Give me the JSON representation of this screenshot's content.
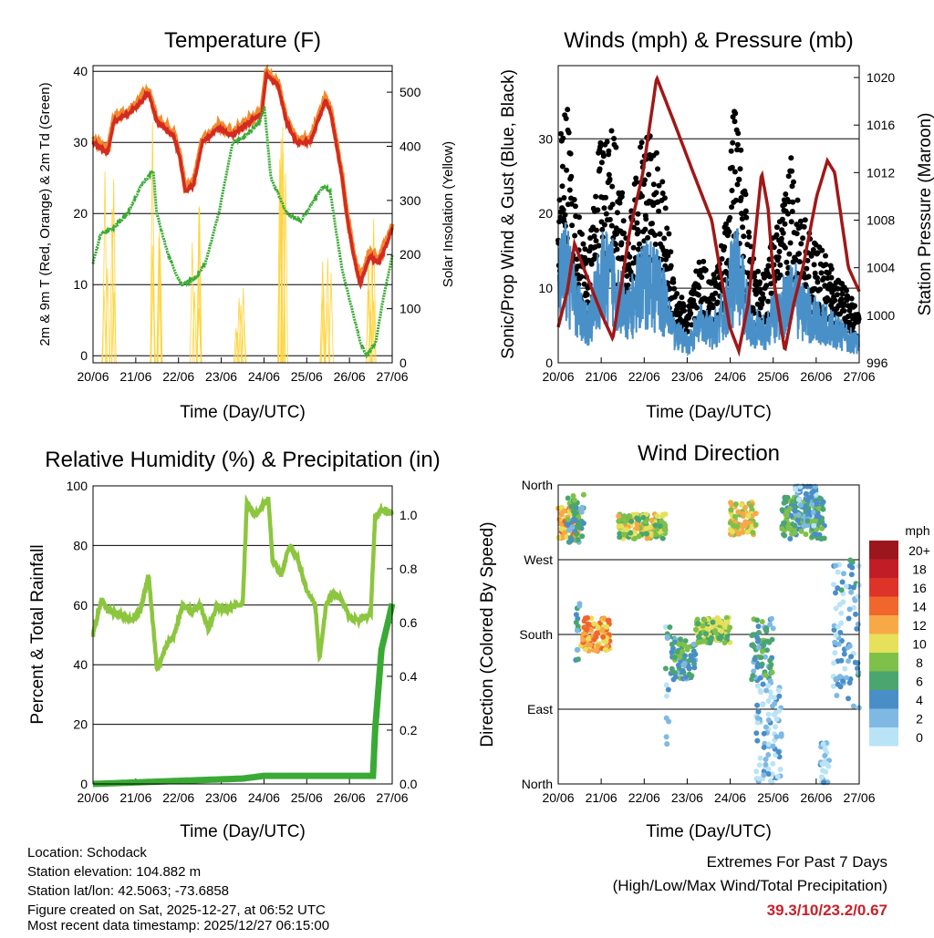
{
  "chart_data": [
    {
      "type": "line",
      "title": "Temperature (F)",
      "xlabel": "Time (Day/UTC)",
      "ylabel": "2m & 9m T (Red, Orange) & 2m Td (Green)",
      "ylabel_right": "Solar Insolation (Yellow)",
      "xticks": [
        "20/06",
        "21/06",
        "22/06",
        "23/06",
        "24/06",
        "25/06",
        "26/06",
        "27/06"
      ],
      "xlim_days": [
        0,
        7
      ],
      "ylim": [
        -1,
        40.8
      ],
      "yticks": [
        "0",
        "10",
        "20",
        "30",
        "40"
      ],
      "ylim_right": [
        0,
        549
      ],
      "yticks_right": [
        "0",
        "100",
        "200",
        "300",
        "400",
        "500"
      ],
      "grid": true,
      "series": [
        {
          "name": "2m T",
          "color": "#d42a20",
          "points": [
            [
              0,
              30
            ],
            [
              0.34,
              28.5
            ],
            [
              0.49,
              33
            ],
            [
              0.81,
              34
            ],
            [
              1.02,
              35
            ],
            [
              1.3,
              37
            ],
            [
              1.49,
              33
            ],
            [
              1.88,
              31
            ],
            [
              2.03,
              28
            ],
            [
              2.16,
              23
            ],
            [
              2.35,
              24
            ],
            [
              2.56,
              30
            ],
            [
              2.94,
              32
            ],
            [
              3.27,
              31
            ],
            [
              3.69,
              33
            ],
            [
              3.95,
              34
            ],
            [
              4.05,
              39.5
            ],
            [
              4.33,
              38
            ],
            [
              4.52,
              33
            ],
            [
              4.76,
              30
            ],
            [
              5.08,
              30
            ],
            [
              5.44,
              36
            ],
            [
              5.57,
              34
            ],
            [
              5.83,
              25
            ],
            [
              5.93,
              20
            ],
            [
              6.1,
              14
            ],
            [
              6.25,
              10
            ],
            [
              6.47,
              14
            ],
            [
              6.68,
              13
            ],
            [
              6.89,
              16
            ],
            [
              7,
              18
            ]
          ]
        },
        {
          "name": "9m T",
          "color": "#f08a30",
          "offset": 0.4
        },
        {
          "name": "2m Td",
          "color": "#3aaa35",
          "points": [
            [
              0,
              13
            ],
            [
              0.17,
              17
            ],
            [
              0.49,
              18
            ],
            [
              0.81,
              20
            ],
            [
              1.13,
              24
            ],
            [
              1.41,
              26
            ],
            [
              1.49,
              20
            ],
            [
              1.77,
              14
            ],
            [
              1.98,
              11
            ],
            [
              2.09,
              10
            ],
            [
              2.41,
              11
            ],
            [
              2.63,
              13
            ],
            [
              2.94,
              20
            ],
            [
              3.27,
              30
            ],
            [
              3.59,
              31
            ],
            [
              3.91,
              33
            ],
            [
              4.01,
              35
            ],
            [
              4.16,
              25
            ],
            [
              4.54,
              20
            ],
            [
              4.87,
              19
            ],
            [
              5.4,
              24
            ],
            [
              5.55,
              23
            ],
            [
              5.83,
              12
            ],
            [
              6.04,
              7
            ],
            [
              6.25,
              2
            ],
            [
              6.4,
              0
            ],
            [
              6.62,
              2
            ],
            [
              6.79,
              8
            ],
            [
              7,
              14
            ]
          ]
        },
        {
          "name": "Solar Insolation",
          "color": "#ffd43b",
          "axis": "right",
          "daily_peaks": [
            [
              0.38,
              400
            ],
            [
              1.45,
              520
            ],
            [
              2.37,
              300
            ],
            [
              3.41,
              150
            ],
            [
              4.48,
              540
            ],
            [
              5.46,
              310
            ],
            [
              6.47,
              270
            ]
          ]
        }
      ]
    },
    {
      "type": "scatter",
      "title": "Winds (mph) & Pressure (mb)",
      "xlabel": "Time (Day/UTC)",
      "ylabel": "Sonic/Prop Wind & Gust (Blue, Black)",
      "ylabel_right": "Station Pressure (Maroon)",
      "xticks": [
        "20/06",
        "21/06",
        "22/06",
        "23/06",
        "24/06",
        "25/06",
        "26/06",
        "27/06"
      ],
      "xlim_days": [
        0,
        7
      ],
      "ylim": [
        0,
        39.8
      ],
      "yticks": [
        "0",
        "10",
        "20",
        "30"
      ],
      "ylim_right": [
        996,
        1021
      ],
      "yticks_right": [
        "996",
        "1000",
        "1004",
        "1008",
        "1012",
        "1016",
        "1020"
      ],
      "grid": true,
      "series": [
        {
          "name": "Gust",
          "color": "#000000",
          "points": [
            [
              0,
              20
            ],
            [
              0.2,
              25
            ],
            [
              0.4,
              15
            ],
            [
              0.7,
              10
            ],
            [
              1.0,
              22
            ],
            [
              1.3,
              22
            ],
            [
              1.6,
              12
            ],
            [
              1.9,
              20
            ],
            [
              2.1,
              22
            ],
            [
              2.4,
              18
            ],
            [
              2.7,
              8
            ],
            [
              3.0,
              5
            ],
            [
              3.3,
              10
            ],
            [
              3.6,
              8
            ],
            [
              3.9,
              14
            ],
            [
              4.1,
              25
            ],
            [
              4.3,
              18
            ],
            [
              4.5,
              10
            ],
            [
              4.8,
              8
            ],
            [
              5.0,
              12
            ],
            [
              5.2,
              14
            ],
            [
              5.4,
              20
            ],
            [
              5.6,
              15
            ],
            [
              5.9,
              12
            ],
            [
              6.2,
              10
            ],
            [
              6.5,
              8
            ],
            [
              7,
              5
            ]
          ]
        },
        {
          "name": "Wind",
          "color": "#4a90c8",
          "ratio_of_gust": 0.5
        },
        {
          "name": "Station Pressure",
          "color": "#a01818",
          "axis": "right",
          "points": [
            [
              0,
              999
            ],
            [
              0.21,
              1002
            ],
            [
              0.38,
              1006
            ],
            [
              0.59,
              1004
            ],
            [
              1.02,
              1000
            ],
            [
              1.27,
              998
            ],
            [
              1.66,
              1007
            ],
            [
              1.97,
              1012
            ],
            [
              2.29,
              1020
            ],
            [
              2.72,
              1016
            ],
            [
              3.14,
              1012
            ],
            [
              3.57,
              1008
            ],
            [
              3.99,
              999
            ],
            [
              4.2,
              997
            ],
            [
              4.42,
              1001
            ],
            [
              4.73,
              1012
            ],
            [
              4.88,
              1009
            ],
            [
              5.01,
              1003
            ],
            [
              5.27,
              997
            ],
            [
              5.48,
              1001
            ],
            [
              5.69,
              1004
            ],
            [
              6.01,
              1010
            ],
            [
              6.26,
              1013
            ],
            [
              6.43,
              1012
            ],
            [
              6.75,
              1004
            ],
            [
              7,
              1002
            ]
          ]
        }
      ]
    },
    {
      "type": "line",
      "title": "Relative Humidity (%) & Precipitation (in)",
      "xlabel": "Time (Day/UTC)",
      "ylabel": "Percent & Total Rainfall",
      "xticks": [
        "20/06",
        "21/06",
        "22/06",
        "23/06",
        "24/06",
        "25/06",
        "26/06",
        "27/06"
      ],
      "xlim_days": [
        0,
        7
      ],
      "ylim": [
        0,
        100
      ],
      "yticks": [
        "0",
        "20",
        "40",
        "60",
        "80",
        "100"
      ],
      "ylim_right": [
        0,
        1.108
      ],
      "yticks_right": [
        "0.0",
        "0.2",
        "0.4",
        "0.6",
        "0.8",
        "1.0"
      ],
      "grid": true,
      "series": [
        {
          "name": "Relative Humidity",
          "color": "#8cc63f",
          "points": [
            [
              0,
              50
            ],
            [
              0.2,
              62
            ],
            [
              0.35,
              58
            ],
            [
              0.6,
              57
            ],
            [
              0.9,
              55
            ],
            [
              1.1,
              58
            ],
            [
              1.3,
              70
            ],
            [
              1.5,
              38
            ],
            [
              1.7,
              46
            ],
            [
              1.9,
              50
            ],
            [
              2.1,
              60
            ],
            [
              2.3,
              58
            ],
            [
              2.5,
              60
            ],
            [
              2.7,
              52
            ],
            [
              2.9,
              60
            ],
            [
              3.1,
              58
            ],
            [
              3.3,
              60
            ],
            [
              3.5,
              60
            ],
            [
              3.6,
              94
            ],
            [
              3.8,
              90
            ],
            [
              3.9,
              92
            ],
            [
              4.1,
              96
            ],
            [
              4.2,
              75
            ],
            [
              4.4,
              70
            ],
            [
              4.6,
              80
            ],
            [
              4.8,
              75
            ],
            [
              5.0,
              65
            ],
            [
              5.2,
              60
            ],
            [
              5.3,
              42
            ],
            [
              5.45,
              60
            ],
            [
              5.6,
              64
            ],
            [
              5.8,
              62
            ],
            [
              6.0,
              56
            ],
            [
              6.2,
              55
            ],
            [
              6.5,
              57
            ],
            [
              6.6,
              90
            ],
            [
              6.8,
              92
            ],
            [
              7,
              91
            ]
          ]
        },
        {
          "name": "Total Precipitation",
          "color": "#3aaa35",
          "axis": "right",
          "points": [
            [
              0,
              0
            ],
            [
              3.5,
              0.02
            ],
            [
              4.0,
              0.03
            ],
            [
              6.55,
              0.03
            ],
            [
              6.6,
              0.2
            ],
            [
              6.75,
              0.5
            ],
            [
              6.9,
              0.6
            ],
            [
              7,
              0.67
            ]
          ]
        }
      ]
    },
    {
      "type": "scatter",
      "title": "Wind Direction",
      "xlabel": "Time (Day/UTC)",
      "ylabel": "Direction (Colored By Speed)",
      "xticks": [
        "20/06",
        "21/06",
        "22/06",
        "23/06",
        "24/06",
        "25/06",
        "26/06",
        "27/06"
      ],
      "xlim_days": [
        0,
        7
      ],
      "ylim": [
        0,
        360
      ],
      "yticks": [
        "North",
        "East",
        "South",
        "West",
        "North"
      ],
      "grid": true,
      "legend": {
        "title": "mph",
        "placement": "right",
        "labels": [
          "20+",
          "18",
          "16",
          "14",
          "12",
          "10",
          "8",
          "6",
          "4",
          "2",
          "0"
        ],
        "colors": [
          "#9b161d",
          "#c01d26",
          "#de3328",
          "#f0662d",
          "#f7a847",
          "#e6e05a",
          "#7fc04a",
          "#4aa66e",
          "#4a8ec7",
          "#7fb9e3",
          "#b9e3f6"
        ]
      },
      "clusters": [
        [
          0,
          0.5,
          315,
          20,
          12
        ],
        [
          0.2,
          0.6,
          320,
          30,
          5
        ],
        [
          0.4,
          0.5,
          180,
          40,
          4
        ],
        [
          0.5,
          1.2,
          180,
          20,
          12
        ],
        [
          1.4,
          2.5,
          310,
          15,
          9
        ],
        [
          2.5,
          2.6,
          120,
          80,
          3
        ],
        [
          2.6,
          3.2,
          150,
          25,
          5
        ],
        [
          3.2,
          4.0,
          185,
          15,
          8
        ],
        [
          4.0,
          4.6,
          320,
          20,
          10
        ],
        [
          4.5,
          5.0,
          160,
          40,
          5
        ],
        [
          4.6,
          5.2,
          60,
          60,
          1
        ],
        [
          5.2,
          6.2,
          320,
          25,
          6
        ],
        [
          5.5,
          6.0,
          340,
          30,
          3
        ],
        [
          6.1,
          6.3,
          20,
          30,
          1
        ],
        [
          6.4,
          7,
          180,
          90,
          3
        ]
      ]
    }
  ],
  "footer": {
    "location": "Location: Schodack",
    "elevation": "Station elevation: 104.882 m",
    "latlon": "Station lat/lon: 42.5063; -73.6858",
    "created": "Figure created on Sat, 2025-12-27, at 06:52 UTC",
    "recent": "Most recent data timestamp: 2025/12/27 06:15:00",
    "extremes_title": "Extremes For Past 7 Days",
    "extremes_sub": "(High/Low/Max Wind/Total Precipitation)",
    "extremes_values": "39.3/10/23.2/0.67"
  }
}
